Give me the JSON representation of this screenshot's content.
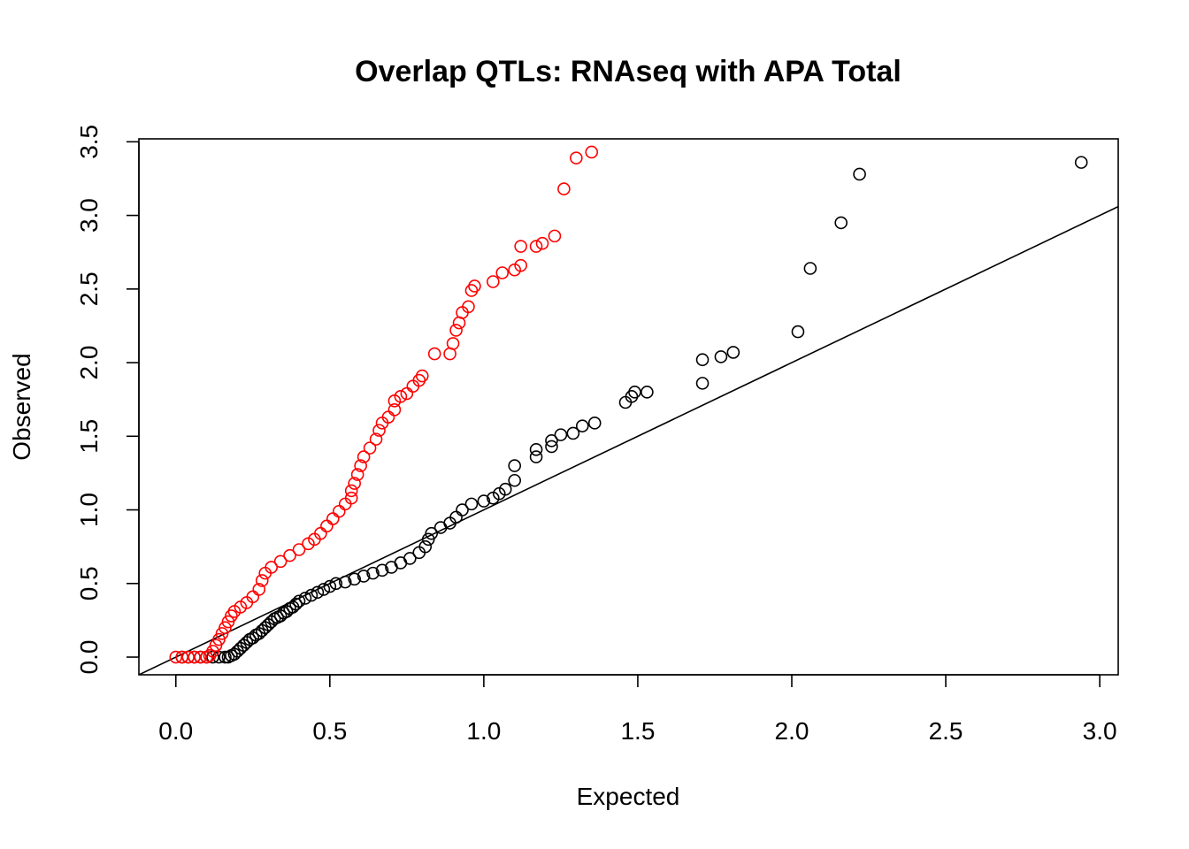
{
  "chart_data": {
    "type": "scatter",
    "title": "Overlap QTLs: RNAseq with APA Total",
    "xlabel": "Expected",
    "ylabel": "Observed",
    "xlim": [
      -0.12,
      3.06
    ],
    "ylim": [
      -0.12,
      3.52
    ],
    "x_ticks": [
      "0.0",
      "0.5",
      "1.0",
      "1.5",
      "2.0",
      "2.5",
      "3.0"
    ],
    "y_ticks": [
      "0.0",
      "0.5",
      "1.0",
      "1.5",
      "2.0",
      "2.5",
      "3.0",
      "3.5"
    ],
    "reference_line": {
      "slope": 1,
      "intercept": 0
    },
    "grid": false,
    "legend": "none",
    "series": [
      {
        "color": "#000000",
        "points": [
          [
            0.02,
            0.0
          ],
          [
            0.04,
            0.0
          ],
          [
            0.06,
            0.0
          ],
          [
            0.08,
            0.0
          ],
          [
            0.1,
            0.0
          ],
          [
            0.12,
            0.0
          ],
          [
            0.14,
            0.0
          ],
          [
            0.16,
            0.0
          ],
          [
            0.17,
            0.0
          ],
          [
            0.18,
            0.01
          ],
          [
            0.19,
            0.02
          ],
          [
            0.2,
            0.04
          ],
          [
            0.21,
            0.06
          ],
          [
            0.22,
            0.08
          ],
          [
            0.23,
            0.1
          ],
          [
            0.24,
            0.12
          ],
          [
            0.25,
            0.13
          ],
          [
            0.26,
            0.15
          ],
          [
            0.27,
            0.16
          ],
          [
            0.28,
            0.18
          ],
          [
            0.29,
            0.2
          ],
          [
            0.3,
            0.22
          ],
          [
            0.31,
            0.24
          ],
          [
            0.32,
            0.26
          ],
          [
            0.33,
            0.27
          ],
          [
            0.34,
            0.28
          ],
          [
            0.35,
            0.3
          ],
          [
            0.36,
            0.31
          ],
          [
            0.37,
            0.33
          ],
          [
            0.38,
            0.34
          ],
          [
            0.39,
            0.36
          ],
          [
            0.4,
            0.38
          ],
          [
            0.42,
            0.4
          ],
          [
            0.44,
            0.42
          ],
          [
            0.46,
            0.44
          ],
          [
            0.48,
            0.46
          ],
          [
            0.5,
            0.48
          ],
          [
            0.52,
            0.5
          ],
          [
            0.55,
            0.51
          ],
          [
            0.58,
            0.53
          ],
          [
            0.61,
            0.55
          ],
          [
            0.64,
            0.57
          ],
          [
            0.67,
            0.59
          ],
          [
            0.7,
            0.61
          ],
          [
            0.73,
            0.64
          ],
          [
            0.76,
            0.67
          ],
          [
            0.79,
            0.71
          ],
          [
            0.81,
            0.75
          ],
          [
            0.82,
            0.8
          ],
          [
            0.83,
            0.84
          ],
          [
            0.86,
            0.88
          ],
          [
            0.89,
            0.91
          ],
          [
            0.91,
            0.95
          ],
          [
            0.93,
            1.0
          ],
          [
            0.96,
            1.04
          ],
          [
            1.0,
            1.06
          ],
          [
            1.03,
            1.08
          ],
          [
            1.05,
            1.11
          ],
          [
            1.07,
            1.14
          ],
          [
            1.1,
            1.2
          ],
          [
            1.1,
            1.3
          ],
          [
            1.17,
            1.36
          ],
          [
            1.17,
            1.41
          ],
          [
            1.22,
            1.43
          ],
          [
            1.22,
            1.47
          ],
          [
            1.25,
            1.51
          ],
          [
            1.29,
            1.52
          ],
          [
            1.32,
            1.57
          ],
          [
            1.36,
            1.59
          ],
          [
            1.46,
            1.73
          ],
          [
            1.48,
            1.77
          ],
          [
            1.49,
            1.8
          ],
          [
            1.53,
            1.8
          ],
          [
            1.71,
            1.86
          ],
          [
            1.71,
            2.02
          ],
          [
            1.77,
            2.04
          ],
          [
            1.81,
            2.07
          ],
          [
            2.02,
            2.21
          ],
          [
            2.06,
            2.64
          ],
          [
            2.16,
            2.95
          ],
          [
            2.22,
            3.28
          ],
          [
            2.94,
            3.36
          ]
        ]
      },
      {
        "color": "#ff0000",
        "points": [
          [
            0.0,
            0.0
          ],
          [
            0.02,
            0.0
          ],
          [
            0.04,
            0.0
          ],
          [
            0.06,
            0.0
          ],
          [
            0.08,
            0.0
          ],
          [
            0.1,
            0.0
          ],
          [
            0.11,
            0.01
          ],
          [
            0.12,
            0.04
          ],
          [
            0.13,
            0.08
          ],
          [
            0.14,
            0.12
          ],
          [
            0.15,
            0.16
          ],
          [
            0.16,
            0.2
          ],
          [
            0.17,
            0.24
          ],
          [
            0.18,
            0.28
          ],
          [
            0.19,
            0.31
          ],
          [
            0.21,
            0.34
          ],
          [
            0.23,
            0.37
          ],
          [
            0.25,
            0.41
          ],
          [
            0.27,
            0.46
          ],
          [
            0.28,
            0.52
          ],
          [
            0.29,
            0.57
          ],
          [
            0.31,
            0.61
          ],
          [
            0.34,
            0.65
          ],
          [
            0.37,
            0.69
          ],
          [
            0.4,
            0.73
          ],
          [
            0.43,
            0.77
          ],
          [
            0.45,
            0.8
          ],
          [
            0.47,
            0.84
          ],
          [
            0.49,
            0.89
          ],
          [
            0.51,
            0.94
          ],
          [
            0.53,
            0.99
          ],
          [
            0.55,
            1.04
          ],
          [
            0.57,
            1.08
          ],
          [
            0.57,
            1.13
          ],
          [
            0.58,
            1.18
          ],
          [
            0.59,
            1.24
          ],
          [
            0.6,
            1.3
          ],
          [
            0.61,
            1.36
          ],
          [
            0.63,
            1.42
          ],
          [
            0.65,
            1.48
          ],
          [
            0.66,
            1.54
          ],
          [
            0.67,
            1.59
          ],
          [
            0.69,
            1.63
          ],
          [
            0.71,
            1.68
          ],
          [
            0.71,
            1.74
          ],
          [
            0.73,
            1.77
          ],
          [
            0.75,
            1.79
          ],
          [
            0.77,
            1.84
          ],
          [
            0.79,
            1.88
          ],
          [
            0.8,
            1.91
          ],
          [
            0.84,
            2.06
          ],
          [
            0.89,
            2.06
          ],
          [
            0.9,
            2.13
          ],
          [
            0.91,
            2.22
          ],
          [
            0.92,
            2.27
          ],
          [
            0.93,
            2.34
          ],
          [
            0.95,
            2.38
          ],
          [
            0.96,
            2.49
          ],
          [
            0.97,
            2.52
          ],
          [
            1.03,
            2.55
          ],
          [
            1.06,
            2.61
          ],
          [
            1.1,
            2.63
          ],
          [
            1.12,
            2.66
          ],
          [
            1.12,
            2.79
          ],
          [
            1.17,
            2.79
          ],
          [
            1.19,
            2.81
          ],
          [
            1.23,
            2.86
          ],
          [
            1.26,
            3.18
          ],
          [
            1.3,
            3.39
          ],
          [
            1.35,
            3.43
          ]
        ]
      }
    ]
  }
}
